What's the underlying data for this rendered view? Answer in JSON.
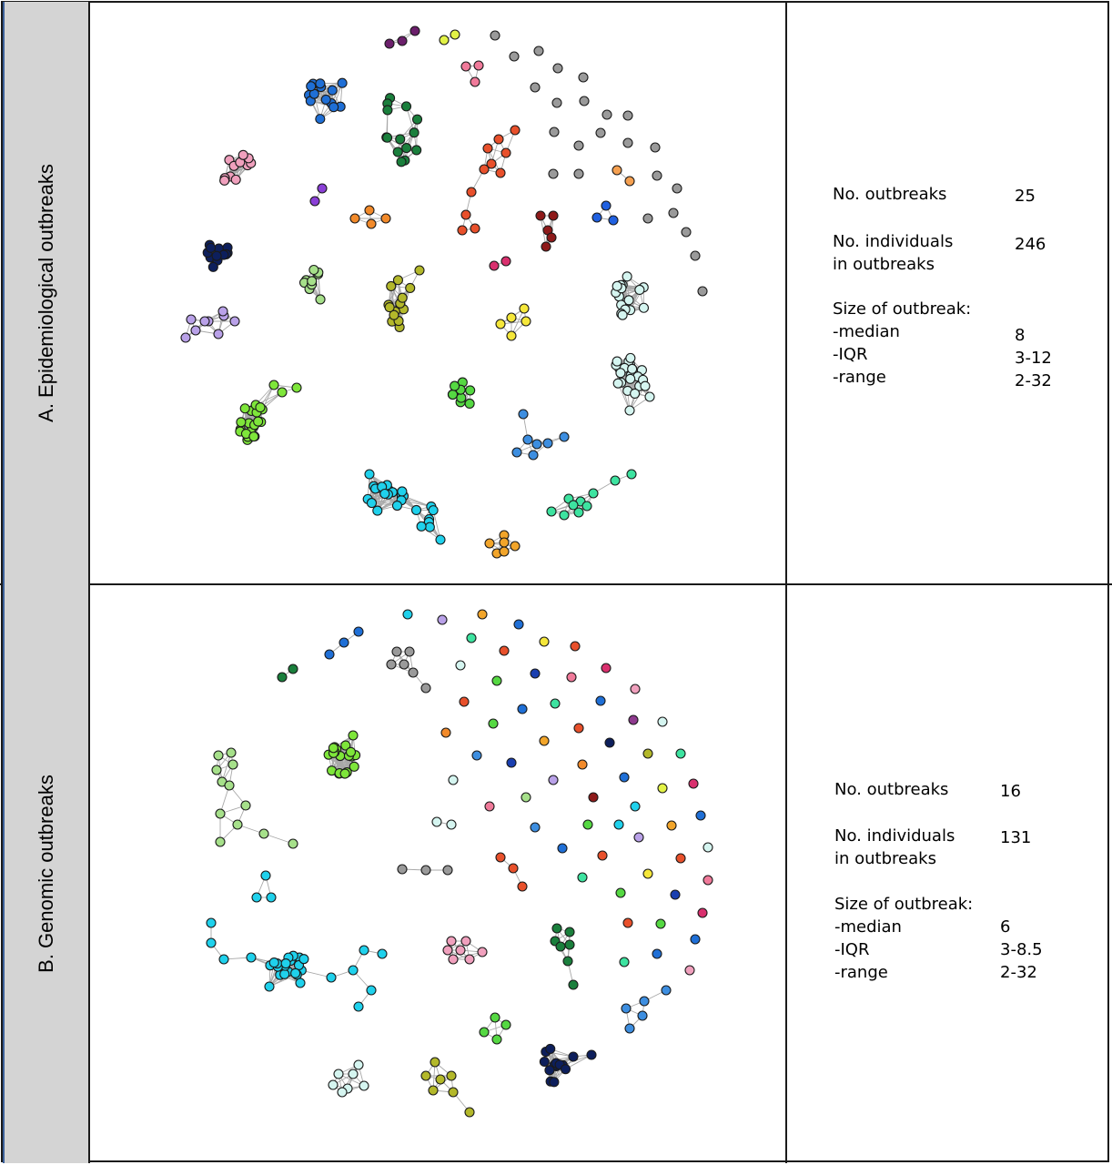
{
  "panels": {
    "a": {
      "label": "A. Epidemiological outbreaks",
      "stats": {
        "outbreaks_label": "No. outbreaks",
        "outbreaks_value": "25",
        "individuals_label_1": "No. individuals",
        "individuals_label_2": "in outbreaks",
        "individuals_value": "246",
        "size_label": "Size of outbreak:",
        "median_label": "-median",
        "median_value": "8",
        "iqr_label": "-IQR",
        "iqr_value": "3-12",
        "range_label": "-range",
        "range_value": "2-32"
      },
      "cluster_colors": [
        "#1f6fd6",
        "#1a7f3c",
        "#e8502b",
        "#f0a0bd",
        "#8a3fd6",
        "#f28a2a",
        "#0d1f5c",
        "#a6e08a",
        "#b3b82a",
        "#b9a1e8",
        "#7ee63a",
        "#1fd1ec",
        "#f5e73a",
        "#55d842",
        "#3d8ee0",
        "#3de3a0",
        "#f2a52a",
        "#8e1a1a",
        "#2060e0",
        "#d5f5f0",
        "#d9306e",
        "#e2f246",
        "#f07a9a",
        "#6b1f6b",
        "#f5a050",
        "#9a9a9a"
      ]
    },
    "b": {
      "label": "B. Genomic outbreaks",
      "stats": {
        "outbreaks_label": "No. outbreaks",
        "outbreaks_value": "16",
        "individuals_label_1": "No. individuals",
        "individuals_label_2": "in outbreaks",
        "individuals_value": "131",
        "size_label": "Size of outbreak:",
        "median_label": "-median",
        "median_value": "6",
        "iqr_label": "-IQR",
        "iqr_value": "3-8.5",
        "range_label": "-range",
        "range_value": "2-32"
      },
      "singleton_colors": [
        "#1fd1ec",
        "#b9a1e8",
        "#f2a52a",
        "#1f6fd6",
        "#3de3a0",
        "#e8502b",
        "#f5e73a",
        "#e8502b",
        "#d5f5f0",
        "#55d842",
        "#1a3fb0",
        "#f07a9a",
        "#d9306e",
        "#e8502b",
        "#55d842",
        "#1f6fd6",
        "#3de3a0",
        "#1f6fd6",
        "#f0a0bd",
        "#f28a2a",
        "#3d8ee0",
        "#1a3fb0",
        "#f2a52a",
        "#e8502b",
        "#0d1f5c",
        "#8e3a8e",
        "#d5f5f0",
        "#b3b82a",
        "#3de3a0",
        "#d5f5f0",
        "#f07a9a",
        "#a6e08a",
        "#b9a1e8",
        "#f28a2a",
        "#1f6fd6",
        "#e2f246",
        "#d9306e",
        "#8e1a1a",
        "#1fd1ec",
        "#3d8ee0",
        "#55d842",
        "#1f6fd6"
      ]
    }
  }
}
